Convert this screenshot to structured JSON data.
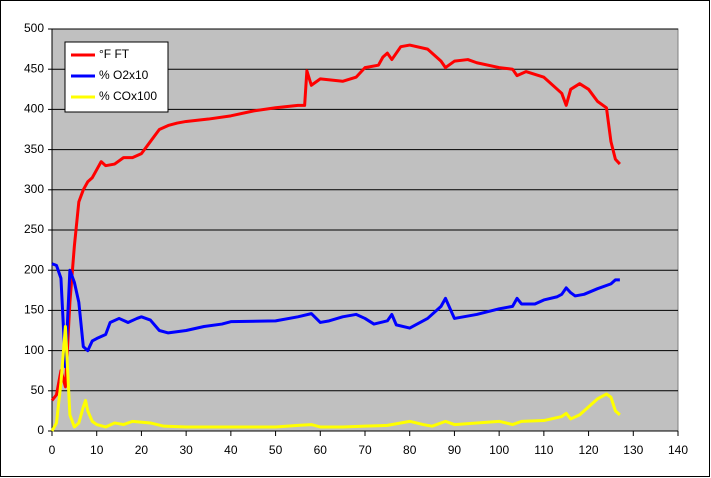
{
  "chart_data": {
    "type": "line",
    "xlim": [
      0,
      140
    ],
    "xticks": [
      0,
      10,
      20,
      30,
      40,
      50,
      60,
      70,
      80,
      90,
      100,
      110,
      120,
      130,
      140
    ],
    "ylim": [
      0,
      500
    ],
    "yticks": [
      0,
      50,
      100,
      150,
      200,
      250,
      300,
      350,
      400,
      450,
      500
    ],
    "grid": true,
    "legend": "upper left",
    "background": "#c0c0c0",
    "series": [
      {
        "name": "°F FT",
        "color": "#ff0000",
        "x": [
          0,
          1,
          2,
          3,
          4,
          5,
          6,
          7,
          8,
          9,
          10,
          11,
          12,
          14,
          16,
          18,
          20,
          22,
          24,
          26,
          28,
          30,
          35,
          40,
          45,
          50,
          55,
          56.5,
          57,
          58,
          60,
          65,
          68,
          70,
          73,
          74,
          75,
          76,
          78,
          80,
          84,
          87,
          88,
          90,
          93,
          95,
          100,
          103,
          104,
          106,
          110,
          114,
          115,
          116,
          118,
          120,
          122,
          124,
          125,
          126,
          127
        ],
        "values": [
          38,
          45,
          75,
          55,
          160,
          230,
          285,
          300,
          310,
          315,
          325,
          335,
          330,
          332,
          340,
          340,
          345,
          360,
          375,
          380,
          383,
          385,
          388,
          392,
          398,
          402,
          405,
          405,
          448,
          430,
          438,
          435,
          440,
          452,
          455,
          465,
          470,
          462,
          478,
          480,
          475,
          460,
          452,
          460,
          462,
          458,
          452,
          450,
          442,
          447,
          440,
          420,
          405,
          425,
          432,
          425,
          410,
          402,
          360,
          338,
          332
        ]
      },
      {
        "name": "% O2x10",
        "color": "#0000ff",
        "x": [
          0,
          1,
          2,
          3,
          4,
          5,
          6,
          7,
          8,
          9,
          10,
          12,
          13,
          15,
          17,
          19,
          20,
          22,
          24,
          26,
          30,
          34,
          38,
          40,
          50,
          55,
          58,
          60,
          62,
          65,
          68,
          70,
          72,
          75,
          76,
          77,
          80,
          84,
          87,
          88,
          90,
          95,
          100,
          103,
          104,
          105,
          108,
          110,
          113,
          114,
          115,
          116,
          117,
          119,
          122,
          125,
          126,
          127
        ],
        "values": [
          208,
          206,
          190,
          80,
          200,
          185,
          160,
          105,
          100,
          112,
          115,
          120,
          135,
          140,
          135,
          140,
          142,
          138,
          125,
          122,
          125,
          130,
          133,
          136,
          137,
          142,
          146,
          135,
          137,
          142,
          145,
          140,
          133,
          137,
          145,
          132,
          128,
          140,
          155,
          165,
          140,
          145,
          152,
          155,
          165,
          158,
          158,
          163,
          167,
          170,
          178,
          172,
          168,
          170,
          177,
          183,
          188,
          188
        ]
      },
      {
        "name": "% COx100",
        "color": "#ffff00",
        "x": [
          0,
          1,
          2,
          3,
          4,
          5,
          6,
          7,
          7.5,
          8,
          9,
          10,
          12,
          14,
          16,
          18,
          22,
          25,
          30,
          40,
          50,
          55,
          58,
          60,
          65,
          70,
          75,
          80,
          83,
          85,
          88,
          90,
          95,
          100,
          103,
          105,
          110,
          114,
          115,
          116,
          118,
          120,
          122,
          124,
          125,
          126,
          127
        ],
        "values": [
          0,
          10,
          60,
          130,
          20,
          5,
          10,
          30,
          38,
          25,
          12,
          8,
          5,
          10,
          8,
          12,
          10,
          6,
          5,
          5,
          5,
          7,
          8,
          5,
          5,
          6,
          7,
          12,
          8,
          6,
          12,
          8,
          10,
          12,
          8,
          12,
          13,
          18,
          22,
          15,
          20,
          30,
          40,
          46,
          42,
          25,
          20
        ]
      }
    ]
  }
}
